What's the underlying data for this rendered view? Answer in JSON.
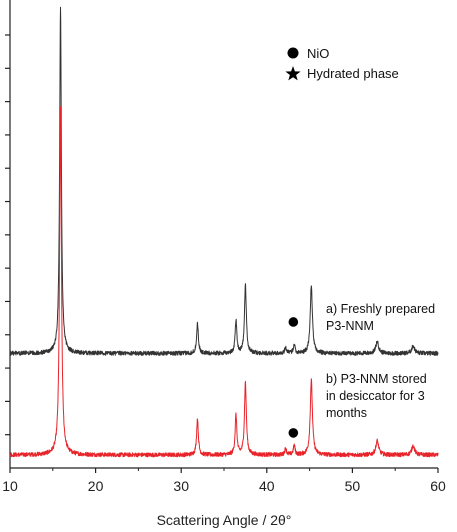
{
  "chart_data": {
    "type": "line",
    "xlabel": "Scattering Angle / 2θ°",
    "ylabel": "",
    "xlim": [
      10,
      60
    ],
    "ylim": [
      0,
      100
    ],
    "x_ticks": [
      10,
      20,
      30,
      40,
      50,
      60
    ],
    "x_tick_labels": [
      "10",
      "20",
      "30",
      "40",
      "50",
      "60"
    ],
    "y_tick_count": 13,
    "y_tick_labels_shown": false,
    "series": [
      {
        "label": "a",
        "color": "#333333",
        "baseline": 24.5,
        "peaks": [
          {
            "x": 15.9,
            "height": 74,
            "width": 0.12
          },
          {
            "x": 31.9,
            "height": 6.5,
            "width": 0.12
          },
          {
            "x": 36.4,
            "height": 7,
            "width": 0.12
          },
          {
            "x": 37.5,
            "height": 14.5,
            "width": 0.13
          },
          {
            "x": 42.2,
            "height": 1.3,
            "width": 0.12
          },
          {
            "x": 43.2,
            "height": 2,
            "width": 0.12
          },
          {
            "x": 45.2,
            "height": 14.5,
            "width": 0.15
          },
          {
            "x": 52.9,
            "height": 2.5,
            "width": 0.2
          },
          {
            "x": 57.1,
            "height": 1.6,
            "width": 0.2
          }
        ]
      },
      {
        "label": "b",
        "color": "#e8242a",
        "baseline": 2.8,
        "peaks": [
          {
            "x": 15.9,
            "height": 74,
            "width": 0.13
          },
          {
            "x": 31.9,
            "height": 7.8,
            "width": 0.12
          },
          {
            "x": 36.4,
            "height": 8.5,
            "width": 0.12
          },
          {
            "x": 37.5,
            "height": 15.5,
            "width": 0.13
          },
          {
            "x": 42.2,
            "height": 1.4,
            "width": 0.12
          },
          {
            "x": 43.2,
            "height": 2,
            "width": 0.12
          },
          {
            "x": 45.2,
            "height": 16,
            "width": 0.15
          },
          {
            "x": 52.9,
            "height": 3,
            "width": 0.2
          },
          {
            "x": 57.1,
            "height": 2,
            "width": 0.2
          }
        ]
      }
    ],
    "markers": [
      {
        "symbol": "circle",
        "x": 43.1,
        "y": 31.2,
        "meaning": "NiO"
      },
      {
        "symbol": "circle",
        "x": 43.1,
        "y": 7.5,
        "meaning": "NiO"
      }
    ],
    "annotations": [
      {
        "lines": [
          "a) Freshly prepared",
          "P3-NNM"
        ],
        "x": 48.5,
        "y": 39
      },
      {
        "lines": [
          "b) P3-NNM stored",
          "in desiccator for 3",
          "months"
        ],
        "x": 48.5,
        "y": 20
      }
    ],
    "legend": {
      "placement": "top-right",
      "entries": [
        {
          "symbol": "circle",
          "label": "NiO"
        },
        {
          "symbol": "star",
          "label": "Hydrated phase"
        }
      ]
    },
    "grid": false
  }
}
